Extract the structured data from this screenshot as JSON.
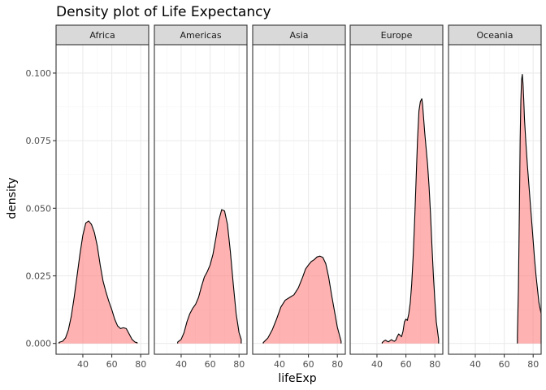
{
  "chart_data": {
    "type": "area",
    "title": "Density plot of Life Expectancy",
    "xlabel": "lifeExp",
    "ylabel": "density",
    "xlim": [
      21.5,
      85.5
    ],
    "ylim": [
      -0.004,
      0.1105
    ],
    "x_ticks": [
      40,
      60,
      80
    ],
    "y_ticks": [
      0.0,
      0.025,
      0.05,
      0.075,
      0.1
    ],
    "y_tick_labels": [
      "0.000",
      "0.025",
      "0.050",
      "0.075",
      "0.100"
    ],
    "x_tick_labels": [
      "40",
      "60",
      "80"
    ],
    "grid": true,
    "facets": [
      {
        "name": "Africa",
        "x": [
          23.6,
          26,
          28,
          30,
          32,
          34,
          36,
          38,
          40,
          42,
          44,
          46,
          48,
          50,
          52,
          54,
          56,
          58,
          60,
          62,
          64,
          66,
          68,
          70,
          72,
          74,
          76,
          77.5
        ],
        "y": [
          0.0004,
          0.0008,
          0.002,
          0.005,
          0.01,
          0.017,
          0.025,
          0.033,
          0.04,
          0.0445,
          0.0453,
          0.044,
          0.041,
          0.036,
          0.029,
          0.023,
          0.019,
          0.0155,
          0.0125,
          0.009,
          0.0065,
          0.0055,
          0.0058,
          0.0055,
          0.0035,
          0.0015,
          0.0005,
          0.0003
        ]
      },
      {
        "name": "Americas",
        "x": [
          37.6,
          40,
          42,
          44,
          46,
          48,
          50,
          52,
          54,
          56,
          58,
          60,
          62,
          64,
          66,
          68,
          70,
          72,
          74,
          76,
          78,
          80,
          81.5
        ],
        "y": [
          0.0005,
          0.0015,
          0.004,
          0.008,
          0.011,
          0.013,
          0.0145,
          0.017,
          0.021,
          0.0245,
          0.0265,
          0.029,
          0.033,
          0.039,
          0.0455,
          0.0495,
          0.049,
          0.044,
          0.034,
          0.022,
          0.011,
          0.004,
          0.0015
        ]
      },
      {
        "name": "Asia",
        "x": [
          28.8,
          32,
          35,
          38,
          41,
          44,
          47,
          50,
          53,
          56,
          58,
          60,
          62,
          64,
          66,
          68,
          70,
          72,
          74,
          76,
          78,
          80,
          82.6
        ],
        "y": [
          0.0003,
          0.002,
          0.005,
          0.009,
          0.0135,
          0.016,
          0.017,
          0.018,
          0.0205,
          0.0245,
          0.0275,
          0.029,
          0.0303,
          0.031,
          0.032,
          0.0323,
          0.0318,
          0.0295,
          0.0245,
          0.018,
          0.012,
          0.006,
          0.0008
        ]
      },
      {
        "name": "Europe",
        "x": [
          43.6,
          45,
          46,
          47,
          48,
          49,
          50,
          51,
          52,
          53,
          54,
          55,
          56,
          57,
          58,
          59,
          60,
          61,
          62,
          63,
          64,
          65,
          66,
          67,
          68,
          69,
          70,
          71,
          71.5,
          72,
          73,
          74,
          75,
          76,
          77,
          78,
          79,
          80,
          81,
          82.6
        ],
        "y": [
          0.0003,
          0.001,
          0.0012,
          0.0008,
          0.0006,
          0.001,
          0.0014,
          0.001,
          0.0008,
          0.0012,
          0.0025,
          0.0035,
          0.003,
          0.0025,
          0.0045,
          0.008,
          0.009,
          0.0085,
          0.011,
          0.015,
          0.022,
          0.032,
          0.045,
          0.06,
          0.075,
          0.086,
          0.0895,
          0.0905,
          0.0885,
          0.085,
          0.078,
          0.072,
          0.066,
          0.058,
          0.048,
          0.036,
          0.025,
          0.016,
          0.008,
          0.0015
        ]
      },
      {
        "name": "Oceania",
        "x": [
          69.1,
          69.8,
          70.5,
          71,
          71.5,
          72,
          72.5,
          73,
          73.5,
          74,
          75,
          76,
          77,
          78,
          79,
          80,
          81,
          82,
          83,
          84,
          85.5
        ],
        "y": [
          0.003,
          0.02,
          0.05,
          0.075,
          0.09,
          0.0975,
          0.0995,
          0.096,
          0.09,
          0.083,
          0.074,
          0.066,
          0.059,
          0.052,
          0.045,
          0.038,
          0.031,
          0.025,
          0.02,
          0.015,
          0.011
        ]
      }
    ],
    "colors": {
      "fill": "#ff7f7f",
      "fill_opacity": 0.6,
      "line": "#000000",
      "strip_bg": "#d9d9d9",
      "panel_border": "#333333",
      "grid_major": "#ebebeb",
      "grid_minor": "#f5f5f5"
    }
  }
}
